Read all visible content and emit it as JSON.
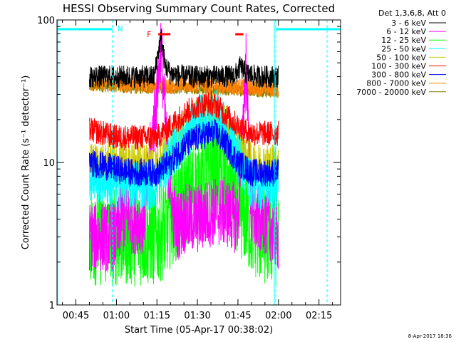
{
  "chart_data": {
    "type": "line",
    "title": "HESSI Observing Summary Count Rates, Corrected",
    "xlabel": "Start Time (05-Apr-17 00:38:02)",
    "ylabel": "Corrected Count Rate (s⁻¹ detector⁻¹)",
    "y_scale": "log",
    "ylim": [
      1,
      100
    ],
    "xlim_minutes": [
      38,
      143
    ],
    "x_ticks": [
      {
        "label": "00:45",
        "minutes": 45
      },
      {
        "label": "01:00",
        "minutes": 60
      },
      {
        "label": "01:15",
        "minutes": 75
      },
      {
        "label": "01:30",
        "minutes": 90
      },
      {
        "label": "01:45",
        "minutes": 105
      },
      {
        "label": "02:00",
        "minutes": 120
      },
      {
        "label": "02:15",
        "minutes": 135
      }
    ],
    "y_ticks": [
      {
        "label": "1",
        "value": 1
      },
      {
        "label": "10",
        "value": 10
      },
      {
        "label": "100",
        "value": 100
      }
    ],
    "legend_title": "Det 1,3,6,8, Att 0",
    "legend_position": "right",
    "series": [
      {
        "name": "3 - 6 keV",
        "color": "#000000",
        "x": [
          50,
          55,
          60,
          65,
          70,
          74,
          75.5,
          76.5,
          78,
          80,
          85,
          90,
          95,
          100,
          104,
          106,
          108,
          112,
          118,
          120
        ],
        "y": [
          40,
          40,
          40,
          40,
          40,
          40,
          60,
          75,
          48,
          42,
          40,
          40,
          40,
          40,
          41,
          47,
          42,
          40,
          40,
          40
        ]
      },
      {
        "name": "6 - 12 keV",
        "color": "#ff00ff",
        "x": [
          50,
          55,
          60,
          62,
          65,
          70,
          75,
          76.5,
          78,
          80,
          82,
          85,
          90,
          95,
          100,
          105,
          108,
          110,
          115,
          120
        ],
        "y": [
          3,
          3,
          3,
          4,
          4,
          4,
          30,
          70,
          20,
          6,
          3.5,
          4,
          4,
          4.5,
          4.5,
          4,
          50,
          4,
          4,
          3
        ]
      },
      {
        "name": "12 - 25 keV",
        "color": "#00ff00",
        "x": [
          50,
          55,
          60,
          65,
          70,
          75,
          78,
          80,
          85,
          90,
          95,
          97,
          100,
          105,
          110,
          115,
          120
        ],
        "y": [
          3,
          3,
          3,
          3,
          3,
          3,
          3.5,
          4,
          5.5,
          7,
          9,
          10,
          8,
          5,
          3.5,
          3,
          3
        ]
      },
      {
        "name": "25 - 50 keV",
        "color": "#00ffff",
        "x": [
          50,
          55,
          60,
          65,
          70,
          75,
          80,
          85,
          90,
          95,
          97,
          100,
          105,
          110,
          115,
          120
        ],
        "y": [
          8,
          7.5,
          7,
          7,
          7,
          7,
          11,
          15,
          19,
          22,
          22,
          18,
          11,
          7,
          7,
          7
        ]
      },
      {
        "name": "50 - 100 keV",
        "color": "#cccc00",
        "x": [
          50,
          55,
          60,
          65,
          70,
          75,
          80,
          85,
          90,
          95,
          97,
          100,
          105,
          110,
          115,
          120
        ],
        "y": [
          10,
          10,
          10,
          10,
          10,
          10,
          13,
          17,
          21,
          23,
          22,
          19,
          13,
          10,
          10,
          10
        ]
      },
      {
        "name": "100 - 300 keV",
        "color": "#ff0000",
        "x": [
          50,
          55,
          60,
          65,
          70,
          75,
          80,
          85,
          90,
          95,
          97,
          100,
          105,
          110,
          115,
          120
        ],
        "y": [
          17,
          16,
          15,
          15,
          15,
          15,
          18,
          22,
          25,
          26,
          25,
          22,
          18,
          16,
          16,
          16
        ]
      },
      {
        "name": "300 - 800 keV",
        "color": "#0000ff",
        "x": [
          50,
          55,
          60,
          65,
          70,
          75,
          80,
          85,
          90,
          95,
          97,
          100,
          105,
          110,
          115,
          120
        ],
        "y": [
          10,
          9.5,
          9,
          8.5,
          8.5,
          8.5,
          10,
          13,
          15,
          16,
          16,
          14,
          10,
          8.5,
          8.5,
          8.5
        ]
      },
      {
        "name": "800 - 7000 keV",
        "color": "#ff8000",
        "x": [
          50,
          55,
          60,
          65,
          70,
          75,
          80,
          85,
          90,
          95,
          100,
          105,
          110,
          115,
          120
        ],
        "y": [
          36,
          36,
          36,
          35,
          35,
          35,
          35,
          35,
          35,
          34,
          34,
          34,
          34,
          33,
          33
        ]
      },
      {
        "name": "7000 - 20000 keV",
        "color": "#808000",
        "x": [
          50,
          55,
          60,
          65,
          70,
          75,
          80,
          85,
          90,
          95,
          100,
          105,
          110,
          115,
          120
        ],
        "y": [
          34,
          34,
          34,
          33,
          33,
          33,
          33,
          33,
          33,
          32,
          32,
          32,
          32,
          31,
          31
        ]
      }
    ],
    "annotations": {
      "night_marker": {
        "label": "N",
        "color": "#00ffff",
        "periods": [
          [
            38,
            58.5
          ],
          [
            119,
            143
          ]
        ],
        "boundaries": [
          58.5,
          119,
          138
        ]
      },
      "flare_marker": {
        "label": "F",
        "color": "#ff0000",
        "periods": [
          [
            75.5,
            80
          ],
          [
            104,
            107
          ]
        ]
      },
      "footer": "8-Apr-2017 18:36"
    }
  }
}
